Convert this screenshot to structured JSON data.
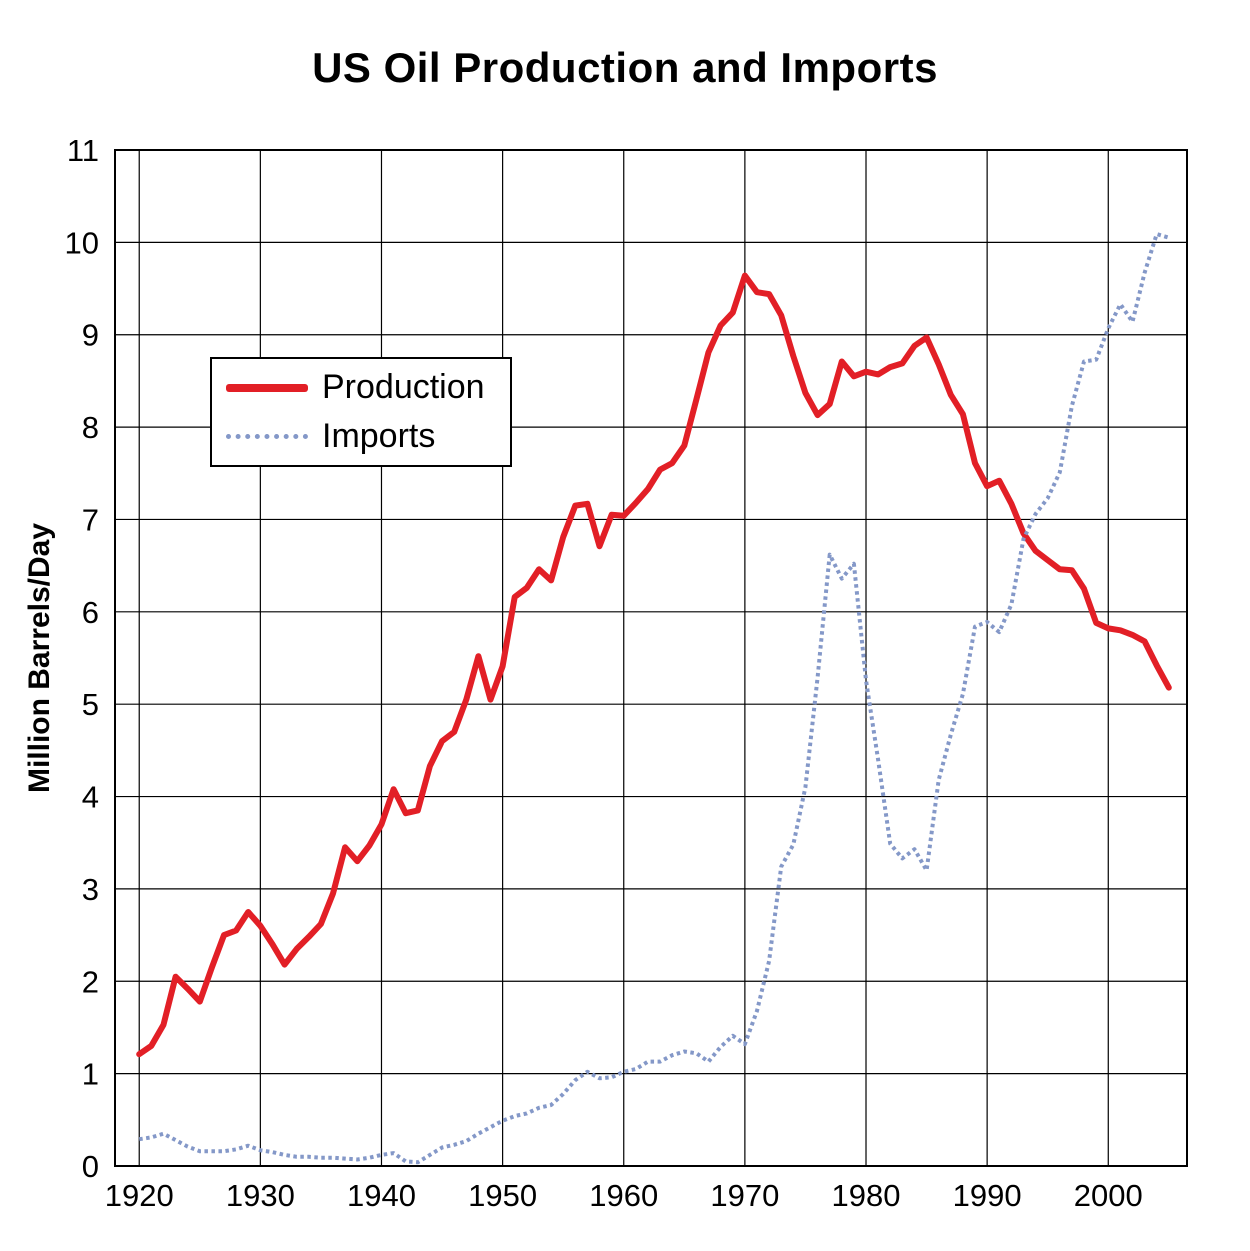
{
  "chart_data": {
    "type": "line",
    "title": "US Oil Production and Imports",
    "xlabel": "",
    "ylabel": "Million Barrels/Day",
    "xlim": [
      1918,
      2006.5
    ],
    "ylim": [
      0,
      11
    ],
    "xticks": [
      1920,
      1930,
      1940,
      1950,
      1960,
      1970,
      1980,
      1990,
      2000
    ],
    "yticks": [
      0,
      1,
      2,
      3,
      4,
      5,
      6,
      7,
      8,
      9,
      10,
      11
    ],
    "grid": true,
    "legend_position": "upper-left-inside",
    "x": [
      1920,
      1921,
      1922,
      1923,
      1924,
      1925,
      1926,
      1927,
      1928,
      1929,
      1930,
      1931,
      1932,
      1933,
      1934,
      1935,
      1936,
      1937,
      1938,
      1939,
      1940,
      1941,
      1942,
      1943,
      1944,
      1945,
      1946,
      1947,
      1948,
      1949,
      1950,
      1951,
      1952,
      1953,
      1954,
      1955,
      1956,
      1957,
      1958,
      1959,
      1960,
      1961,
      1962,
      1963,
      1964,
      1965,
      1966,
      1967,
      1968,
      1969,
      1970,
      1971,
      1972,
      1973,
      1974,
      1975,
      1976,
      1977,
      1978,
      1979,
      1980,
      1981,
      1982,
      1983,
      1984,
      1985,
      1986,
      1987,
      1988,
      1989,
      1990,
      1991,
      1992,
      1993,
      1994,
      1995,
      1996,
      1997,
      1998,
      1999,
      2000,
      2001,
      2002,
      2003,
      2004,
      2005
    ],
    "series": [
      {
        "name": "Production",
        "color": "#e21f26",
        "style": "solid",
        "width": 6,
        "values": [
          1.21,
          1.3,
          1.53,
          2.05,
          1.92,
          1.78,
          2.15,
          2.5,
          2.55,
          2.75,
          2.6,
          2.4,
          2.18,
          2.35,
          2.48,
          2.62,
          2.95,
          3.45,
          3.3,
          3.47,
          3.7,
          4.08,
          3.82,
          3.85,
          4.33,
          4.6,
          4.7,
          5.05,
          5.52,
          5.05,
          5.41,
          6.16,
          6.26,
          6.46,
          6.34,
          6.81,
          7.15,
          7.17,
          6.71,
          7.05,
          7.04,
          7.18,
          7.33,
          7.54,
          7.61,
          7.8,
          8.3,
          8.81,
          9.1,
          9.24,
          9.64,
          9.46,
          9.44,
          9.21,
          8.77,
          8.37,
          8.13,
          8.25,
          8.71,
          8.55,
          8.6,
          8.57,
          8.65,
          8.69,
          8.88,
          8.97,
          8.68,
          8.35,
          8.14,
          7.61,
          7.36,
          7.42,
          7.17,
          6.85,
          6.66,
          6.56,
          6.46,
          6.45,
          6.25,
          5.88,
          5.82,
          5.8,
          5.75,
          5.68,
          5.42,
          5.18
        ]
      },
      {
        "name": "Imports",
        "color": "#8498c8",
        "style": "dotted",
        "width": 4,
        "values": [
          0.29,
          0.31,
          0.35,
          0.28,
          0.21,
          0.16,
          0.16,
          0.16,
          0.18,
          0.22,
          0.17,
          0.15,
          0.12,
          0.1,
          0.1,
          0.09,
          0.09,
          0.08,
          0.07,
          0.09,
          0.12,
          0.14,
          0.05,
          0.04,
          0.12,
          0.2,
          0.23,
          0.27,
          0.35,
          0.42,
          0.49,
          0.54,
          0.57,
          0.63,
          0.66,
          0.78,
          0.93,
          1.02,
          0.95,
          0.96,
          1.02,
          1.05,
          1.13,
          1.13,
          1.2,
          1.24,
          1.22,
          1.13,
          1.29,
          1.41,
          1.32,
          1.68,
          2.22,
          3.24,
          3.48,
          4.1,
          5.29,
          6.62,
          6.36,
          6.52,
          5.26,
          4.4,
          3.49,
          3.33,
          3.43,
          3.2,
          4.18,
          4.67,
          5.11,
          5.84,
          5.89,
          5.78,
          6.08,
          6.79,
          7.06,
          7.23,
          7.51,
          8.23,
          8.71,
          8.73,
          9.07,
          9.33,
          9.14,
          9.67,
          10.09,
          10.05
        ]
      }
    ]
  }
}
